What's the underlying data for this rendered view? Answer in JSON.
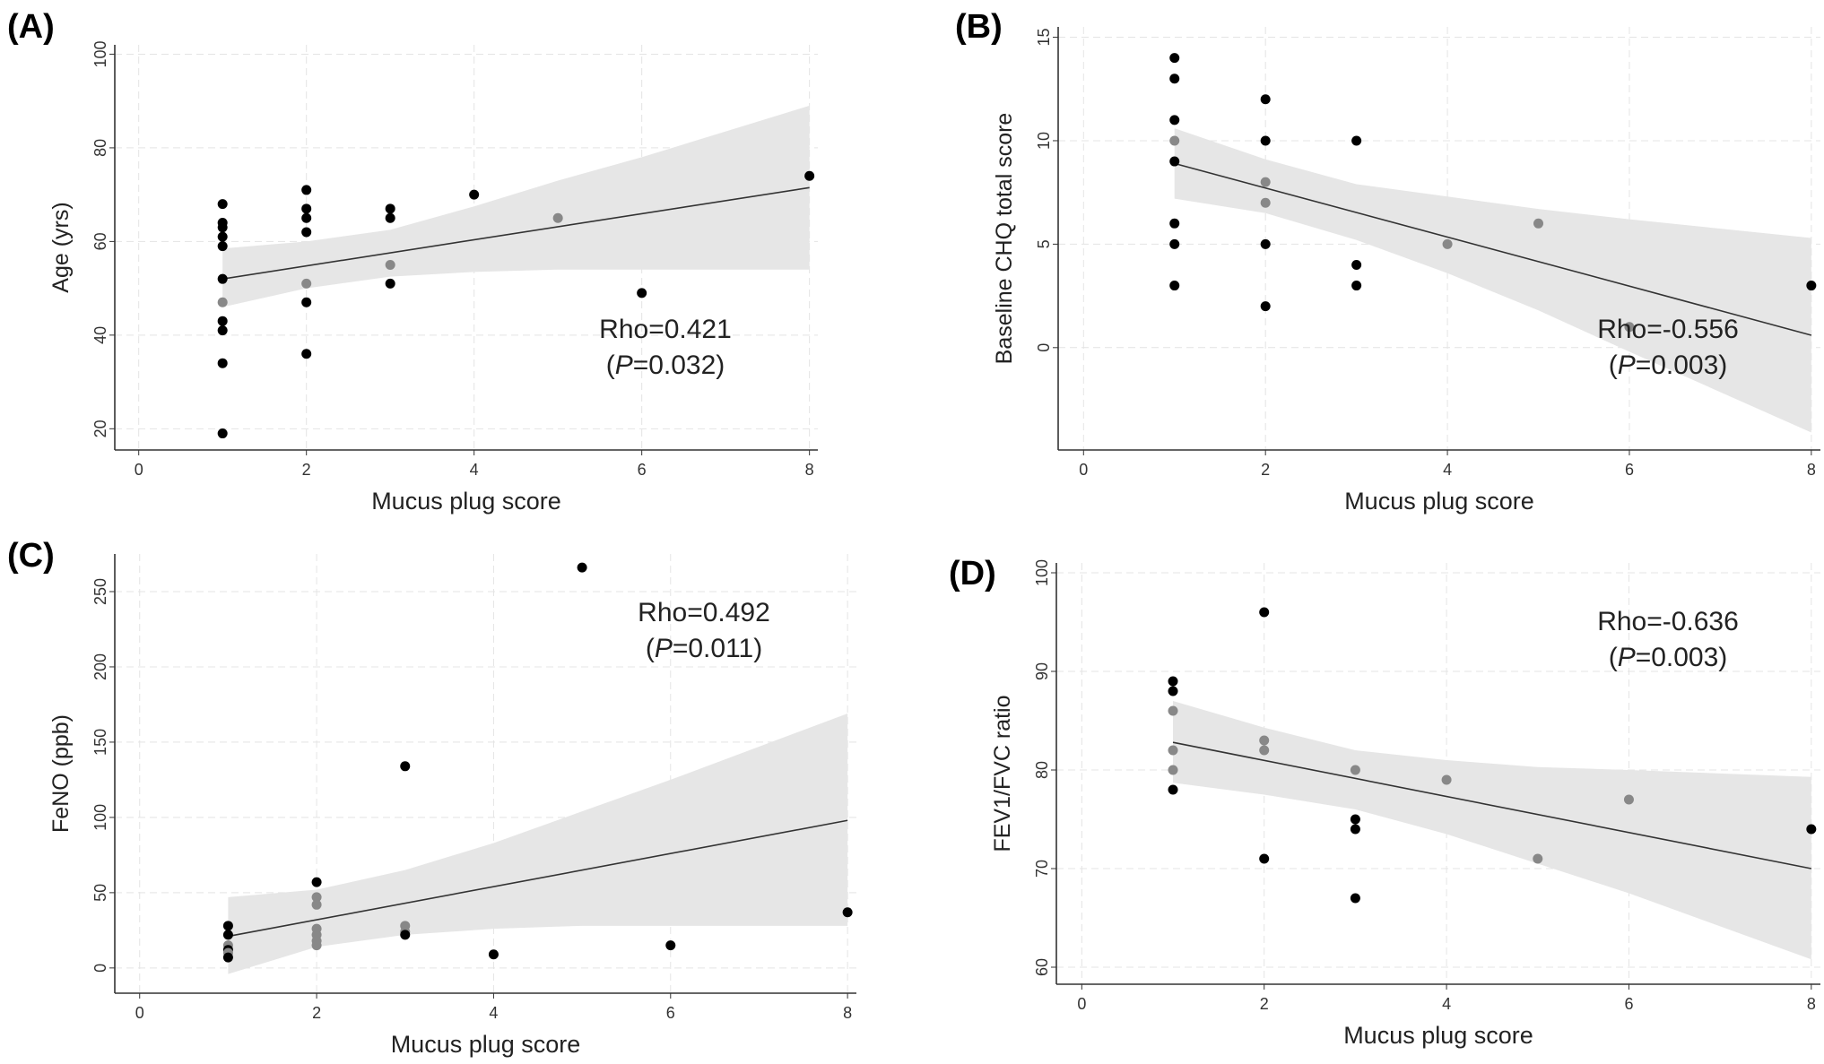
{
  "chart_data": [
    {
      "type": "scatter",
      "panel_label": "(A)",
      "xlabel": "Mucus plug score",
      "ylabel": "Age (yrs)",
      "xlim": [
        -0.2,
        8.1
      ],
      "ylim": [
        17,
        102
      ],
      "xticks": [
        0,
        2,
        4,
        6,
        8
      ],
      "yticks": [
        20,
        40,
        60,
        80,
        100
      ],
      "grid": true,
      "annotation": {
        "rho": "Rho=0.421",
        "p_open": "(",
        "p_italic": "P",
        "p_rest": "=0.032)",
        "position": "bottom-right"
      },
      "points": [
        {
          "x": 1,
          "y": 68,
          "c": "black"
        },
        {
          "x": 1,
          "y": 64,
          "c": "black"
        },
        {
          "x": 1,
          "y": 63,
          "c": "black"
        },
        {
          "x": 1,
          "y": 61,
          "c": "black"
        },
        {
          "x": 1,
          "y": 59,
          "c": "black"
        },
        {
          "x": 1,
          "y": 52,
          "c": "black"
        },
        {
          "x": 1,
          "y": 47,
          "c": "gray"
        },
        {
          "x": 1,
          "y": 43,
          "c": "black"
        },
        {
          "x": 1,
          "y": 41,
          "c": "black"
        },
        {
          "x": 1,
          "y": 34,
          "c": "black"
        },
        {
          "x": 1,
          "y": 19,
          "c": "black"
        },
        {
          "x": 2,
          "y": 71,
          "c": "black"
        },
        {
          "x": 2,
          "y": 67,
          "c": "black"
        },
        {
          "x": 2,
          "y": 65,
          "c": "black"
        },
        {
          "x": 2,
          "y": 62,
          "c": "black"
        },
        {
          "x": 2,
          "y": 51,
          "c": "gray"
        },
        {
          "x": 2,
          "y": 47,
          "c": "black"
        },
        {
          "x": 2,
          "y": 36,
          "c": "black"
        },
        {
          "x": 3,
          "y": 67,
          "c": "black"
        },
        {
          "x": 3,
          "y": 65,
          "c": "black"
        },
        {
          "x": 3,
          "y": 55,
          "c": "gray"
        },
        {
          "x": 3,
          "y": 51,
          "c": "black"
        },
        {
          "x": 4,
          "y": 70,
          "c": "black"
        },
        {
          "x": 5,
          "y": 65,
          "c": "gray"
        },
        {
          "x": 6,
          "y": 49,
          "c": "black"
        },
        {
          "x": 8,
          "y": 74,
          "c": "black"
        }
      ],
      "fit": {
        "x": [
          1,
          8
        ],
        "y": [
          52,
          71.5
        ]
      },
      "ci": {
        "x": [
          1,
          2,
          3,
          4,
          5,
          6,
          8
        ],
        "lower": [
          46,
          50,
          52.5,
          53.5,
          54,
          54,
          54
        ],
        "upper": [
          58.5,
          60,
          62.5,
          67.5,
          73,
          78,
          89
        ]
      }
    },
    {
      "type": "scatter",
      "panel_label": "(B)",
      "xlabel": "Mucus plug score",
      "ylabel": "Baseline CHQ total score",
      "xlim": [
        -0.2,
        8.1
      ],
      "ylim": [
        -4.6,
        15.5
      ],
      "xticks": [
        0,
        2,
        4,
        6,
        8
      ],
      "yticks": [
        0,
        5,
        10,
        15
      ],
      "grid": true,
      "annotation": {
        "rho": "Rho=-0.556",
        "p_open": "(",
        "p_italic": "P",
        "p_rest": "=0.003)",
        "position": "bottom-right"
      },
      "points": [
        {
          "x": 1,
          "y": 14,
          "c": "black"
        },
        {
          "x": 1,
          "y": 13,
          "c": "black"
        },
        {
          "x": 1,
          "y": 11,
          "c": "black"
        },
        {
          "x": 1,
          "y": 10,
          "c": "gray"
        },
        {
          "x": 1,
          "y": 9,
          "c": "black"
        },
        {
          "x": 1,
          "y": 6,
          "c": "black"
        },
        {
          "x": 1,
          "y": 5,
          "c": "black"
        },
        {
          "x": 1,
          "y": 3,
          "c": "black"
        },
        {
          "x": 2,
          "y": 12,
          "c": "black"
        },
        {
          "x": 2,
          "y": 10,
          "c": "black"
        },
        {
          "x": 2,
          "y": 8,
          "c": "gray"
        },
        {
          "x": 2,
          "y": 7,
          "c": "gray"
        },
        {
          "x": 2,
          "y": 5,
          "c": "black"
        },
        {
          "x": 2,
          "y": 2,
          "c": "black"
        },
        {
          "x": 3,
          "y": 10,
          "c": "black"
        },
        {
          "x": 3,
          "y": 4,
          "c": "black"
        },
        {
          "x": 3,
          "y": 3,
          "c": "black"
        },
        {
          "x": 4,
          "y": 5,
          "c": "gray"
        },
        {
          "x": 5,
          "y": 6,
          "c": "gray"
        },
        {
          "x": 6,
          "y": 1,
          "c": "gray"
        },
        {
          "x": 8,
          "y": 3,
          "c": "black"
        }
      ],
      "fit": {
        "x": [
          1,
          8
        ],
        "y": [
          8.9,
          0.6
        ]
      },
      "ci": {
        "x": [
          1,
          2,
          3,
          4,
          5,
          6,
          8
        ],
        "lower": [
          7.2,
          6.5,
          5.2,
          3.6,
          1.8,
          -0.2,
          -4.1
        ],
        "upper": [
          10.6,
          9.1,
          7.9,
          7.3,
          6.7,
          6.2,
          5.3
        ]
      }
    },
    {
      "type": "scatter",
      "panel_label": "(C)",
      "xlabel": "Mucus plug score",
      "ylabel": "FeNO (ppb)",
      "xlim": [
        -0.2,
        8.1
      ],
      "ylim": [
        -12,
        275
      ],
      "xticks": [
        0,
        2,
        4,
        6,
        8
      ],
      "yticks": [
        0,
        50,
        100,
        150,
        200,
        250
      ],
      "grid": true,
      "annotation": {
        "rho": "Rho=0.492",
        "p_open": "(",
        "p_italic": "P",
        "p_rest": "=0.011)",
        "position": "top-right"
      },
      "points": [
        {
          "x": 1,
          "y": 28,
          "c": "black"
        },
        {
          "x": 1,
          "y": 22,
          "c": "black"
        },
        {
          "x": 1,
          "y": 15,
          "c": "gray"
        },
        {
          "x": 1,
          "y": 12,
          "c": "black"
        },
        {
          "x": 1,
          "y": 10,
          "c": "gray"
        },
        {
          "x": 1,
          "y": 7,
          "c": "black"
        },
        {
          "x": 2,
          "y": 57,
          "c": "black"
        },
        {
          "x": 2,
          "y": 47,
          "c": "gray"
        },
        {
          "x": 2,
          "y": 42,
          "c": "gray"
        },
        {
          "x": 2,
          "y": 26,
          "c": "gray"
        },
        {
          "x": 2,
          "y": 22,
          "c": "gray"
        },
        {
          "x": 2,
          "y": 18,
          "c": "gray"
        },
        {
          "x": 2,
          "y": 15,
          "c": "gray"
        },
        {
          "x": 3,
          "y": 134,
          "c": "black"
        },
        {
          "x": 3,
          "y": 28,
          "c": "gray"
        },
        {
          "x": 3,
          "y": 24,
          "c": "gray"
        },
        {
          "x": 3,
          "y": 22,
          "c": "black"
        },
        {
          "x": 4,
          "y": 9,
          "c": "black"
        },
        {
          "x": 5,
          "y": 266,
          "c": "black"
        },
        {
          "x": 6,
          "y": 15,
          "c": "black"
        },
        {
          "x": 8,
          "y": 37,
          "c": "black"
        }
      ],
      "fit": {
        "x": [
          1,
          8
        ],
        "y": [
          21,
          98
        ]
      },
      "ci": {
        "x": [
          1,
          2,
          3,
          4,
          5,
          6,
          8
        ],
        "lower": [
          -4,
          14,
          22,
          26,
          28,
          28,
          28
        ],
        "upper": [
          47,
          52,
          65,
          83,
          104,
          125,
          169
        ]
      }
    },
    {
      "type": "scatter",
      "panel_label": "(D)",
      "xlabel": "Mucus plug score",
      "ylabel": "FEV1/FVC ratio",
      "xlim": [
        -0.2,
        8.1
      ],
      "ylim": [
        59,
        101
      ],
      "xticks": [
        0,
        2,
        4,
        6,
        8
      ],
      "yticks": [
        60,
        70,
        80,
        90,
        100
      ],
      "grid": true,
      "annotation": {
        "rho": "Rho=-0.636",
        "p_open": "(",
        "p_italic": "P",
        "p_rest": "=0.003)",
        "position": "top-right"
      },
      "points": [
        {
          "x": 1,
          "y": 89,
          "c": "black"
        },
        {
          "x": 1,
          "y": 88,
          "c": "black"
        },
        {
          "x": 1,
          "y": 86,
          "c": "gray"
        },
        {
          "x": 1,
          "y": 82,
          "c": "gray"
        },
        {
          "x": 1,
          "y": 80,
          "c": "gray"
        },
        {
          "x": 1,
          "y": 78,
          "c": "black"
        },
        {
          "x": 2,
          "y": 96,
          "c": "black"
        },
        {
          "x": 2,
          "y": 83,
          "c": "gray"
        },
        {
          "x": 2,
          "y": 82,
          "c": "gray"
        },
        {
          "x": 2,
          "y": 71,
          "c": "black"
        },
        {
          "x": 3,
          "y": 80,
          "c": "gray"
        },
        {
          "x": 3,
          "y": 75,
          "c": "black"
        },
        {
          "x": 3,
          "y": 74,
          "c": "black"
        },
        {
          "x": 3,
          "y": 67,
          "c": "black"
        },
        {
          "x": 4,
          "y": 79,
          "c": "gray"
        },
        {
          "x": 5,
          "y": 71,
          "c": "gray"
        },
        {
          "x": 6,
          "y": 77,
          "c": "gray"
        },
        {
          "x": 8,
          "y": 74,
          "c": "black"
        }
      ],
      "fit": {
        "x": [
          1,
          8
        ],
        "y": [
          82.8,
          70
        ]
      },
      "ci": {
        "x": [
          1,
          2,
          3,
          4,
          5,
          6,
          8
        ],
        "lower": [
          78.7,
          77.5,
          76,
          73.5,
          70.5,
          67.5,
          60.8
        ],
        "upper": [
          87,
          84.3,
          82,
          81,
          80.3,
          80,
          79.3
        ]
      }
    }
  ],
  "colors": {
    "black": "#000000",
    "gray": "#888888",
    "ci_fill": "#e6e6e6",
    "fit_line": "#333333",
    "grid": "#e4e4e4"
  }
}
